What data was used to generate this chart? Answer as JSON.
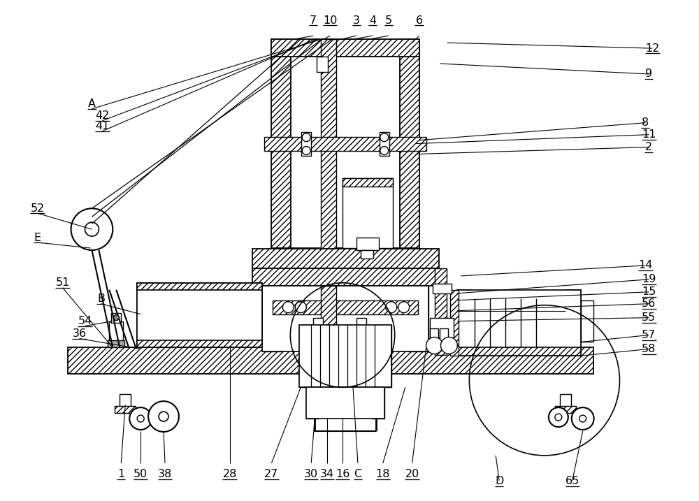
{
  "bg": "#ffffff",
  "lc": "#000000",
  "figw": 10.0,
  "figh": 7.17,
  "dpi": 100,
  "top_labels": [
    [
      "7",
      448,
      28
    ],
    [
      "10",
      472,
      28
    ],
    [
      "3",
      510,
      28
    ],
    [
      "4",
      533,
      28
    ],
    [
      "5",
      556,
      28
    ],
    [
      "6",
      600,
      28
    ]
  ],
  "right_labels": [
    [
      "12",
      935,
      68
    ],
    [
      "9",
      930,
      105
    ],
    [
      "8",
      925,
      175
    ],
    [
      "11",
      930,
      192
    ],
    [
      "2",
      930,
      210
    ],
    [
      "14",
      925,
      380
    ],
    [
      "19",
      930,
      400
    ],
    [
      "15",
      930,
      418
    ],
    [
      "56",
      930,
      435
    ],
    [
      "55",
      930,
      455
    ],
    [
      "57",
      930,
      480
    ],
    [
      "58",
      930,
      500
    ]
  ],
  "left_labels": [
    [
      "A",
      130,
      148
    ],
    [
      "42",
      145,
      165
    ],
    [
      "41",
      145,
      180
    ],
    [
      "52",
      52,
      298
    ],
    [
      "E",
      52,
      340
    ],
    [
      "51",
      88,
      405
    ],
    [
      "B",
      143,
      428
    ],
    [
      "54",
      120,
      460
    ],
    [
      "36",
      112,
      478
    ]
  ],
  "bottom_labels": [
    [
      "1",
      172,
      680
    ],
    [
      "50",
      200,
      680
    ],
    [
      "38",
      235,
      680
    ],
    [
      "28",
      328,
      680
    ],
    [
      "27",
      388,
      680
    ],
    [
      "30",
      445,
      680
    ],
    [
      "34",
      468,
      680
    ],
    [
      "16",
      490,
      680
    ],
    [
      "C",
      512,
      680
    ],
    [
      "18",
      548,
      680
    ],
    [
      "20",
      590,
      680
    ],
    [
      "D",
      715,
      690
    ],
    [
      "65",
      820,
      690
    ]
  ]
}
